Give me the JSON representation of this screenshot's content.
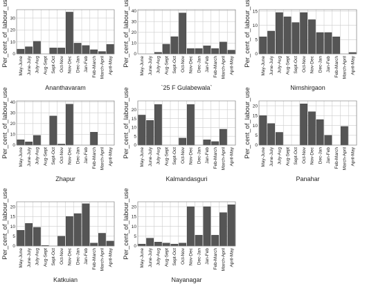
{
  "chart_data": {
    "type": "bar",
    "ylabel": "Per_cent_of_labour_use",
    "categories": [
      "May-June",
      "June-July",
      "July-Aug",
      "Aug-Sept",
      "Sept-Oct",
      "Oct-Nov",
      "Nov-Dec",
      "Dec-Jan",
      "Jan-Feb",
      "Feb-March",
      "March-April",
      "April-May"
    ],
    "grid": true,
    "bar_color": "#555555",
    "panels": [
      {
        "title": "Ananthavaram",
        "yticks": [
          0,
          10,
          20,
          30
        ],
        "ylim": [
          0,
          37
        ],
        "values": [
          4,
          6,
          10.5,
          0,
          5,
          5,
          35,
          9,
          7,
          3.5,
          2,
          8
        ]
      },
      {
        "title": "`25 F Gulabewala`",
        "yticks": [
          0,
          10,
          20,
          30,
          40
        ],
        "ylim": [
          0,
          41
        ],
        "values": [
          0,
          0,
          1.5,
          9,
          16,
          38,
          5,
          5,
          7.5,
          5,
          11,
          3.5
        ]
      },
      {
        "title": "Nimshirgaon",
        "yticks": [
          0,
          5,
          10,
          15
        ],
        "ylim": [
          0,
          15.5
        ],
        "values": [
          6,
          8,
          14.5,
          13,
          11,
          14.5,
          12,
          7.5,
          7.5,
          6,
          0,
          0.5
        ]
      },
      {
        "title": "Zhapur",
        "yticks": [
          0,
          10,
          20,
          30,
          40
        ],
        "ylim": [
          0,
          41
        ],
        "values": [
          5,
          3,
          9,
          0,
          27,
          1,
          38,
          0,
          0,
          12,
          0,
          0
        ]
      },
      {
        "title": "Kalmandasguri",
        "yticks": [
          0,
          5,
          10,
          15,
          20
        ],
        "ylim": [
          0,
          25
        ],
        "values": [
          17,
          14,
          23,
          0,
          0,
          4,
          23,
          0,
          3,
          2,
          9,
          0
        ]
      },
      {
        "title": "Panahar",
        "yticks": [
          0,
          5,
          10,
          15,
          20
        ],
        "ylim": [
          0,
          22.5
        ],
        "values": [
          15,
          11,
          6.5,
          0,
          0,
          21,
          17,
          13,
          5,
          0,
          9.5,
          0
        ]
      },
      {
        "title": "Katkuian",
        "yticks": [
          0,
          5,
          10,
          15,
          20
        ],
        "ylim": [
          0,
          22.5
        ],
        "values": [
          8,
          11.5,
          9.5,
          0.3,
          0,
          5,
          15,
          16.5,
          21.5,
          1.5,
          6.5,
          2.5
        ]
      },
      {
        "title": "Nayanagar",
        "yticks": [
          0,
          5,
          10,
          15,
          20
        ],
        "ylim": [
          0,
          22.5
        ],
        "values": [
          1,
          4,
          2,
          1.5,
          1,
          1.5,
          20,
          5.5,
          20,
          5.5,
          17,
          21
        ]
      }
    ]
  }
}
